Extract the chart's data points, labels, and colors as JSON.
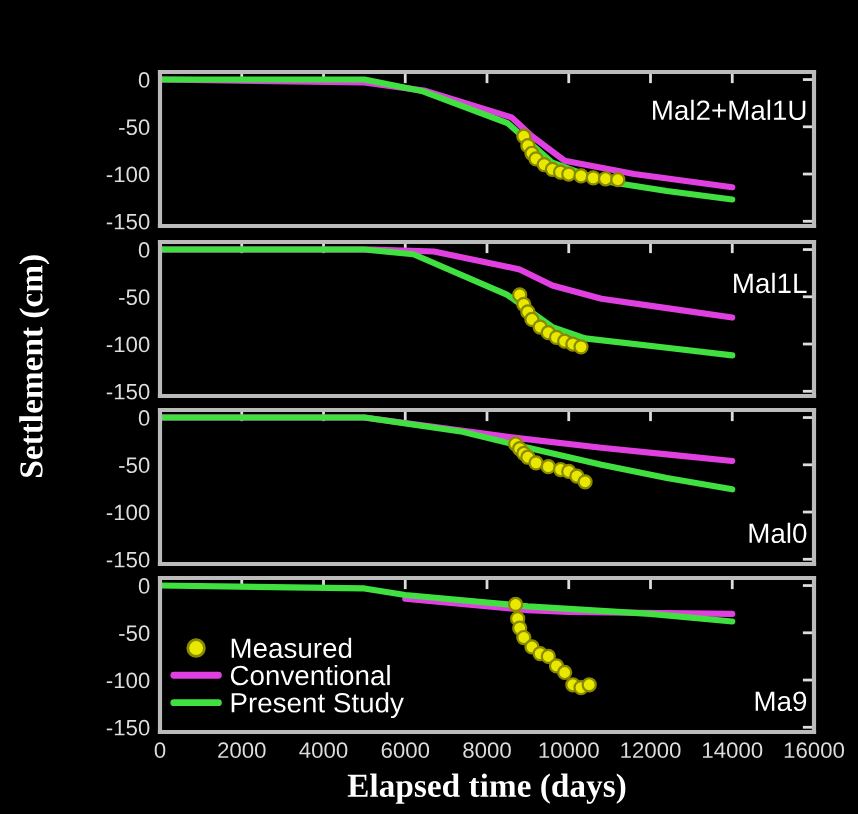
{
  "chart_data": [
    {
      "type": "line",
      "ylabel": "Settlement (cm)",
      "annotations": [
        "Mal2+Mal1U"
      ],
      "xlim": [
        0,
        16000
      ],
      "ylim": [
        -155,
        8
      ],
      "xticks": [
        0,
        2000,
        4000,
        6000,
        8000,
        10000,
        12000,
        14000,
        16000
      ],
      "yticks": [
        0,
        -50,
        -100,
        -150
      ],
      "tick_labels": "y",
      "grid": false,
      "legend": false,
      "series": [
        {
          "type": "scatter",
          "color": "#e8e800",
          "marker": "circle",
          "x": [
            8900,
            9000,
            9100,
            9200,
            9400,
            9600,
            9800,
            10000,
            10300,
            10600,
            10900,
            11200
          ],
          "values": [
            -60,
            -70,
            -78,
            -84,
            -90,
            -95,
            -98,
            -100,
            -102,
            -104,
            -105,
            -106
          ]
        },
        {
          "color": "#e040e0",
          "x": [
            0,
            5000,
            6500,
            8600,
            9100,
            9900,
            11600,
            14000
          ],
          "values": [
            0,
            -3,
            -12,
            -40,
            -60,
            -86,
            -100,
            -114
          ]
        },
        {
          "color": "#40e040",
          "x": [
            0,
            5000,
            6400,
            8500,
            9600,
            10800,
            12400,
            14000
          ],
          "values": [
            0,
            0,
            -12,
            -46,
            -88,
            -107,
            -118,
            -127
          ]
        }
      ]
    },
    {
      "type": "line",
      "annotations": [
        "Mal1L"
      ],
      "xlim": [
        0,
        16000
      ],
      "ylim": [
        -155,
        8
      ],
      "xticks": [
        0,
        2000,
        4000,
        6000,
        8000,
        10000,
        12000,
        14000,
        16000
      ],
      "yticks": [
        0,
        -50,
        -100,
        -150
      ],
      "tick_labels": "y",
      "grid": false,
      "legend": false,
      "series": [
        {
          "type": "scatter",
          "color": "#e8e800",
          "marker": "circle",
          "x": [
            8800,
            8900,
            9000,
            9100,
            9300,
            9500,
            9700,
            9900,
            10100,
            10300
          ],
          "values": [
            -48,
            -58,
            -66,
            -74,
            -82,
            -88,
            -93,
            -97,
            -100,
            -103
          ]
        },
        {
          "color": "#e040e0",
          "x": [
            0,
            5200,
            6700,
            8800,
            9600,
            10800,
            12400,
            14000
          ],
          "values": [
            0,
            0,
            -2,
            -21,
            -38,
            -52,
            -62,
            -72
          ]
        },
        {
          "color": "#40e040",
          "x": [
            0,
            5000,
            6200,
            8500,
            9600,
            10400,
            12400,
            14000
          ],
          "values": [
            0,
            0,
            -5,
            -48,
            -82,
            -94,
            -104,
            -112
          ]
        }
      ]
    },
    {
      "type": "line",
      "annotations": [
        "Mal0"
      ],
      "xlim": [
        0,
        16000
      ],
      "ylim": [
        -155,
        8
      ],
      "xticks": [
        0,
        2000,
        4000,
        6000,
        8000,
        10000,
        12000,
        14000,
        16000
      ],
      "yticks": [
        0,
        -50,
        -100,
        -150
      ],
      "tick_labels": "y",
      "grid": false,
      "legend": false,
      "series": [
        {
          "type": "scatter",
          "color": "#e8e800",
          "marker": "circle",
          "x": [
            8700,
            8800,
            8900,
            9000,
            9200,
            9500,
            9800,
            10000,
            10200,
            10400
          ],
          "values": [
            -28,
            -33,
            -38,
            -42,
            -48,
            -52,
            -55,
            -57,
            -62,
            -68
          ]
        },
        {
          "color": "#e040e0",
          "x": [
            0,
            5000,
            8600,
            10800,
            12400,
            14000
          ],
          "values": [
            0,
            0,
            -21,
            -32,
            -39,
            -46
          ]
        },
        {
          "color": "#40e040",
          "x": [
            0,
            5000,
            7400,
            9000,
            10800,
            12400,
            14000
          ],
          "values": [
            0,
            0,
            -15,
            -32,
            -50,
            -64,
            -76
          ]
        }
      ]
    },
    {
      "type": "line",
      "annotations": [
        "Ma9"
      ],
      "xlabel": "Elapsed time (days)",
      "xlim": [
        0,
        16000
      ],
      "ylim": [
        -155,
        8
      ],
      "xticks": [
        0,
        2000,
        4000,
        6000,
        8000,
        10000,
        12000,
        14000,
        16000
      ],
      "yticks": [
        0,
        -50,
        -100,
        -150
      ],
      "grid": false,
      "legend": "bottom left",
      "series": [
        {
          "type": "scatter",
          "name": "Measured",
          "color": "#e8e800",
          "marker": "circle",
          "x": [
            8700,
            8750,
            8800,
            8900,
            9100,
            9300,
            9500,
            9700,
            9900,
            10100,
            10300,
            10500
          ],
          "values": [
            -20,
            -35,
            -45,
            -55,
            -65,
            -72,
            -75,
            -85,
            -92,
            -105,
            -108,
            -105
          ]
        },
        {
          "name": "Conventional",
          "color": "#e040e0",
          "x": [
            6000,
            9000,
            10000,
            14000
          ],
          "values": [
            -14,
            -26,
            -28,
            -30
          ]
        },
        {
          "name": "Present Study",
          "color": "#40e040",
          "x": [
            0,
            5000,
            6000,
            9000,
            12000,
            14000
          ],
          "values": [
            0,
            -3,
            -10,
            -22,
            -30,
            -38
          ]
        }
      ]
    }
  ]
}
